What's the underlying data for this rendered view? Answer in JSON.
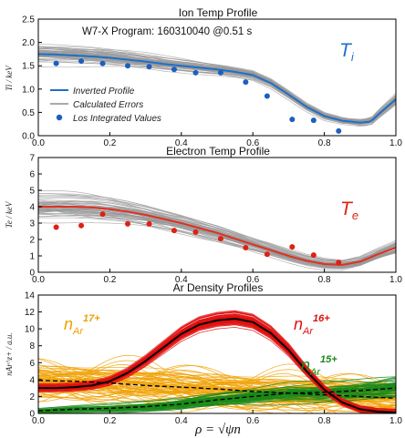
{
  "colors": {
    "inverted_ion": "#1f6fc8",
    "errors": "#9a9a9a",
    "los_points": "#1c5fbf",
    "te_line": "#e03020",
    "te_points": "#e02010",
    "ar16": "#e01010",
    "ar17": "#f0a000",
    "ar15": "#1a8a1a",
    "profile_black": "#000000"
  },
  "xlabel": "ρ = √ψn",
  "chart_data": [
    {
      "type": "line",
      "title": "Ion Temp Profile",
      "ylabel": "Ti / keV",
      "xlim": [
        0,
        1
      ],
      "ylim": [
        0,
        2.5
      ],
      "yticks": [
        "0.0",
        "0.5",
        "1.0",
        "1.5",
        "2.0",
        "2.5"
      ],
      "xticks": [
        "0.0",
        "0.2",
        "0.4",
        "0.6",
        "0.8",
        "1.0"
      ],
      "annotation": "W7-X Program: 160310040 @0.51 s",
      "big_label": "T",
      "big_sub": "i",
      "legend": [
        "Inverted Profile",
        "Calculated Errors",
        "Los Integrated Values"
      ],
      "series": [
        {
          "name": "Inverted Profile",
          "x": [
            0.0,
            0.05,
            0.1,
            0.15,
            0.2,
            0.25,
            0.3,
            0.35,
            0.4,
            0.45,
            0.5,
            0.55,
            0.6,
            0.65,
            0.7,
            0.75,
            0.8,
            0.85,
            0.9,
            0.93,
            0.95,
            1.0
          ],
          "y": [
            1.75,
            1.74,
            1.72,
            1.7,
            1.67,
            1.63,
            1.59,
            1.54,
            1.5,
            1.46,
            1.42,
            1.37,
            1.3,
            1.13,
            0.88,
            0.62,
            0.42,
            0.32,
            0.28,
            0.3,
            0.45,
            0.78
          ]
        },
        {
          "name": "Los Integrated Values",
          "x": [
            0.05,
            0.12,
            0.18,
            0.25,
            0.31,
            0.38,
            0.44,
            0.51,
            0.58,
            0.64,
            0.71,
            0.77,
            0.84
          ],
          "y": [
            1.55,
            1.6,
            1.55,
            1.5,
            1.48,
            1.42,
            1.35,
            1.35,
            1.15,
            0.85,
            0.35,
            0.33,
            0.1
          ]
        }
      ]
    },
    {
      "type": "line",
      "title": "Electron Temp Profile",
      "ylabel": "Te / keV",
      "xlim": [
        0,
        1
      ],
      "ylim": [
        0,
        7
      ],
      "yticks": [
        "0",
        "1",
        "2",
        "3",
        "4",
        "5",
        "6",
        "7"
      ],
      "xticks": [
        "0.0",
        "0.2",
        "0.4",
        "0.6",
        "0.8",
        "1.0"
      ],
      "big_label": "T",
      "big_sub": "e",
      "series": [
        {
          "name": "Te profile",
          "x": [
            0.0,
            0.05,
            0.1,
            0.15,
            0.2,
            0.25,
            0.3,
            0.35,
            0.4,
            0.45,
            0.5,
            0.55,
            0.6,
            0.65,
            0.7,
            0.75,
            0.8,
            0.85,
            0.9,
            0.95,
            1.0
          ],
          "y": [
            4.0,
            4.0,
            4.0,
            3.95,
            3.85,
            3.7,
            3.5,
            3.25,
            3.0,
            2.7,
            2.4,
            2.05,
            1.7,
            1.35,
            1.0,
            0.7,
            0.5,
            0.45,
            0.65,
            1.1,
            1.5
          ]
        },
        {
          "name": "Te points",
          "x": [
            0.05,
            0.12,
            0.18,
            0.25,
            0.31,
            0.38,
            0.44,
            0.51,
            0.58,
            0.64,
            0.71,
            0.77,
            0.84
          ],
          "y": [
            2.75,
            2.85,
            3.55,
            2.95,
            2.95,
            2.55,
            2.45,
            2.05,
            1.5,
            1.1,
            1.55,
            1.05,
            0.6
          ]
        }
      ]
    },
    {
      "type": "line",
      "title": "Ar Density Profiles",
      "ylabel": "nAr^z+ / a.u.",
      "xlim": [
        0,
        1
      ],
      "ylim": [
        0,
        14
      ],
      "yticks": [
        "0",
        "2",
        "4",
        "6",
        "8",
        "10",
        "12",
        "14"
      ],
      "xticks": [
        "0.0",
        "0.2",
        "0.4",
        "0.6",
        "0.8",
        "1.0"
      ],
      "labels": [
        {
          "base": "n",
          "sub": "Ar",
          "sup": "17+"
        },
        {
          "base": "n",
          "sub": "Ar",
          "sup": "16+"
        },
        {
          "base": "n",
          "sub": "Ar",
          "sup": "15+"
        }
      ],
      "series": [
        {
          "name": "Ar16+ mean",
          "x": [
            0.0,
            0.05,
            0.1,
            0.15,
            0.2,
            0.25,
            0.3,
            0.35,
            0.4,
            0.45,
            0.5,
            0.55,
            0.6,
            0.65,
            0.7,
            0.75,
            0.8,
            0.85,
            0.9,
            0.95,
            1.0
          ],
          "y": [
            3.0,
            3.0,
            3.1,
            3.3,
            3.8,
            4.8,
            6.2,
            7.8,
            9.4,
            10.5,
            11.0,
            11.2,
            10.8,
            9.5,
            7.5,
            5.0,
            2.8,
            1.3,
            0.5,
            0.2,
            0.1
          ]
        },
        {
          "name": "Ar17+ mean",
          "x": [
            0.0,
            0.1,
            0.2,
            0.3,
            0.4,
            0.5,
            0.6,
            0.7,
            0.8,
            0.9,
            1.0
          ],
          "y": [
            3.9,
            3.8,
            3.6,
            3.3,
            3.1,
            2.9,
            2.6,
            2.4,
            2.2,
            2.0,
            1.8
          ]
        },
        {
          "name": "Ar15+ mean",
          "x": [
            0.0,
            0.1,
            0.2,
            0.3,
            0.4,
            0.5,
            0.6,
            0.7,
            0.8,
            0.9,
            1.0
          ],
          "y": [
            0.3,
            0.5,
            0.6,
            0.8,
            1.1,
            1.6,
            2.0,
            2.4,
            2.5,
            2.7,
            3.0
          ]
        }
      ]
    }
  ]
}
